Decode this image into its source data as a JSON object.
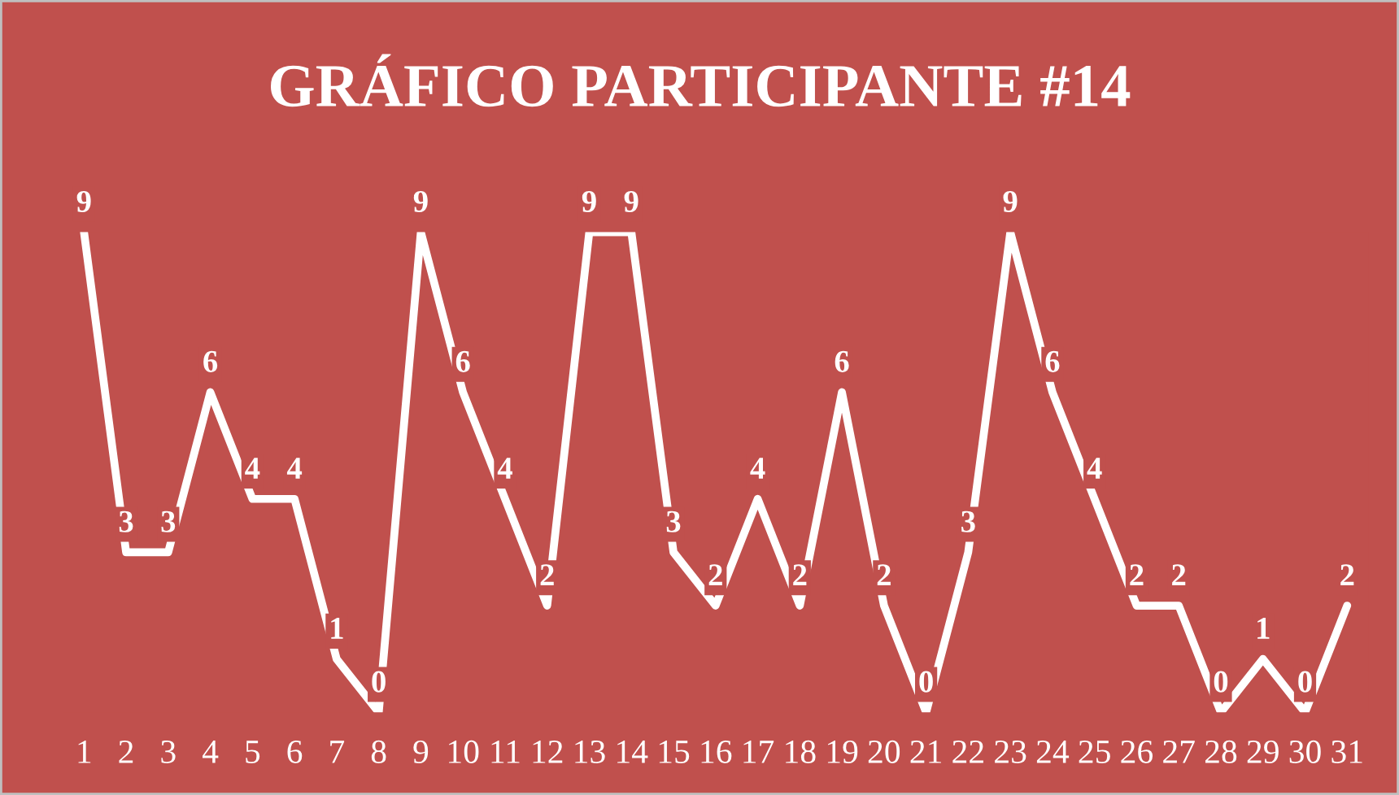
{
  "chart_data": {
    "type": "line",
    "title": "GRÁFICO PARTICIPANTE #14",
    "categories": [
      "1",
      "2",
      "3",
      "4",
      "5",
      "6",
      "7",
      "8",
      "9",
      "10",
      "11",
      "12",
      "13",
      "14",
      "15",
      "16",
      "17",
      "18",
      "19",
      "20",
      "21",
      "22",
      "23",
      "24",
      "25",
      "26",
      "27",
      "28",
      "29",
      "30",
      "31"
    ],
    "series": [
      {
        "color": "#ffffff",
        "values": [
          9,
          3,
          3,
          6,
          4,
          4,
          1,
          0,
          9,
          6,
          4,
          2,
          9,
          9,
          3,
          2,
          4,
          2,
          6,
          2,
          0,
          3,
          9,
          6,
          4,
          2,
          2,
          0,
          1,
          0,
          2
        ]
      }
    ],
    "data_labels": true,
    "grid": false,
    "legend": false,
    "marker": "none",
    "line_style": "solid"
  }
}
